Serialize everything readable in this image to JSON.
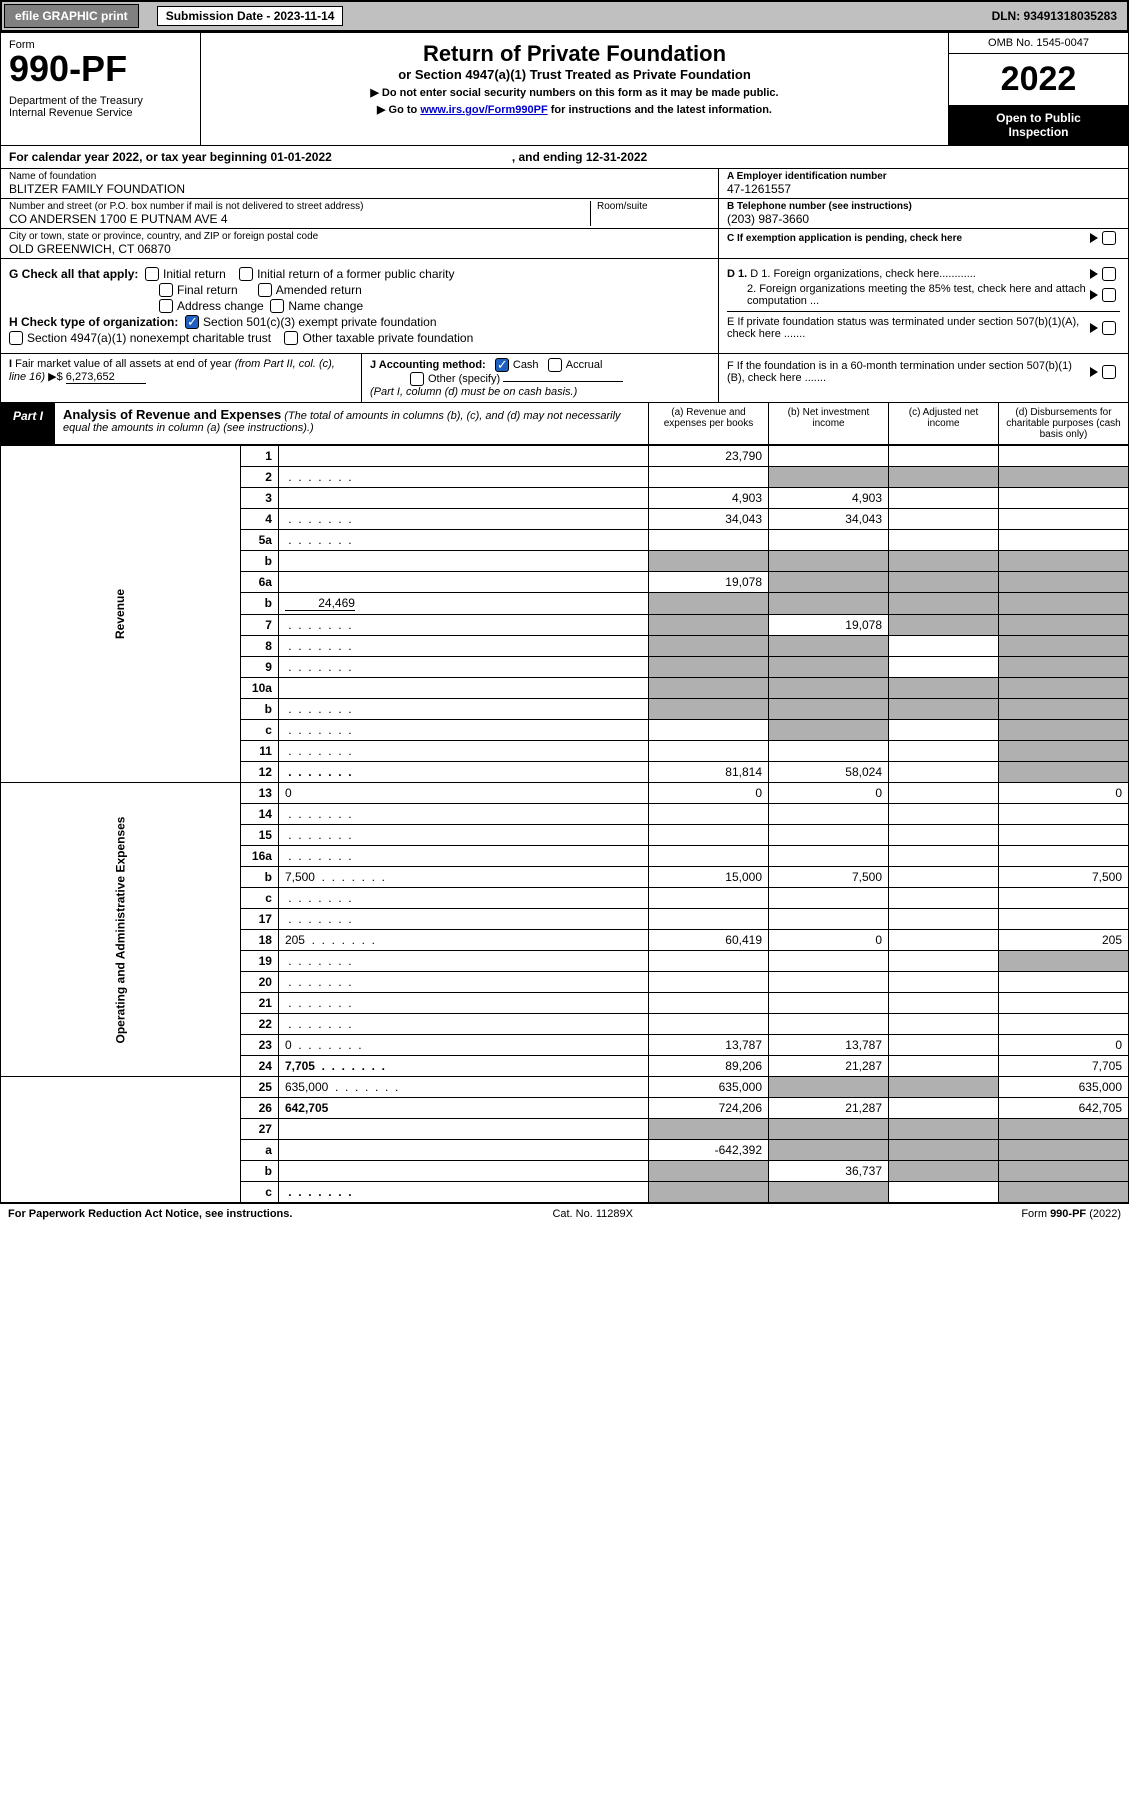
{
  "top": {
    "efile": "efile GRAPHIC print",
    "sub_label": "Submission Date - 2023-11-14",
    "dln": "DLN: 93491318035283"
  },
  "header": {
    "form": "Form",
    "form_no": "990-PF",
    "dept": "Department of the Treasury\nInternal Revenue Service",
    "title": "Return of Private Foundation",
    "subtitle": "or Section 4947(a)(1) Trust Treated as Private Foundation",
    "note1": "▶ Do not enter social security numbers on this form as it may be made public.",
    "note2": "▶ Go to www.irs.gov/Form990PF for instructions and the latest information.",
    "link": "www.irs.gov/Form990PF",
    "omb": "OMB No. 1545-0047",
    "year": "2022",
    "open": "Open to Public\nInspection"
  },
  "calendar": {
    "begin": "For calendar year 2022, or tax year beginning 01-01-2022",
    "end": ", and ending 12-31-2022"
  },
  "info": {
    "name_lbl": "Name of foundation",
    "name": "BLITZER FAMILY FOUNDATION",
    "addr_lbl": "Number and street (or P.O. box number if mail is not delivered to street address)",
    "addr": "CO ANDERSEN 1700 E PUTNAM AVE 4",
    "room_lbl": "Room/suite",
    "city_lbl": "City or town, state or province, country, and ZIP or foreign postal code",
    "city": "OLD GREENWICH, CT  06870",
    "ein_lbl": "A Employer identification number",
    "ein": "47-1261557",
    "phone_lbl": "B Telephone number (see instructions)",
    "phone": "(203) 987-3660",
    "c_lbl": "C If exemption application is pending, check here"
  },
  "checks": {
    "g_label": "G Check all that apply:",
    "g_initial": "Initial return",
    "g_initial_former": "Initial return of a former public charity",
    "g_final": "Final return",
    "g_amended": "Amended return",
    "g_addr": "Address change",
    "g_name": "Name change",
    "h_label": "H Check type of organization:",
    "h_501c3": "Section 501(c)(3) exempt private foundation",
    "h_4947": "Section 4947(a)(1) nonexempt charitable trust",
    "h_other": "Other taxable private foundation",
    "d1": "D 1. Foreign organizations, check here............",
    "d2": "2. Foreign organizations meeting the 85% test, check here and attach computation ...",
    "e": "E  If private foundation status was terminated under section 507(b)(1)(A), check here .......",
    "i_label": "I Fair market value of all assets at end of year (from Part II, col. (c), line 16) ▶$",
    "i_val": "6,273,652",
    "j_label": "J Accounting method:",
    "j_cash": "Cash",
    "j_accrual": "Accrual",
    "j_other": "Other (specify)",
    "j_note": "(Part I, column (d) must be on cash basis.)",
    "f": "F  If the foundation is in a 60-month termination under section 507(b)(1)(B), check here ......."
  },
  "part1": {
    "label": "Part I",
    "title": "Analysis of Revenue and Expenses",
    "note": "(The total of amounts in columns (b), (c), and (d) may not necessarily equal the amounts in column (a) (see instructions).)",
    "col_a": "(a)   Revenue and expenses per books",
    "col_b": "(b)   Net investment income",
    "col_c": "(c)   Adjusted net income",
    "col_d": "(d)   Disbursements for charitable purposes (cash basis only)"
  },
  "sides": {
    "revenue": "Revenue",
    "expenses": "Operating and Administrative Expenses"
  },
  "rows": [
    {
      "n": "1",
      "d": "",
      "a": "23,790",
      "b": "",
      "c": ""
    },
    {
      "n": "2",
      "d": "",
      "dots": true,
      "a": "",
      "b": "",
      "c": "",
      "shade_bcd": true
    },
    {
      "n": "3",
      "d": "",
      "a": "4,903",
      "b": "4,903",
      "c": ""
    },
    {
      "n": "4",
      "d": "",
      "dots": true,
      "a": "34,043",
      "b": "34,043",
      "c": ""
    },
    {
      "n": "5a",
      "d": "",
      "dots": true,
      "a": "",
      "b": "",
      "c": ""
    },
    {
      "n": "b",
      "d": "",
      "inset": true,
      "a": "",
      "b": "",
      "c": "",
      "shade_all": true
    },
    {
      "n": "6a",
      "d": "",
      "a": "19,078",
      "b": "",
      "c": "",
      "shade_bcd": true
    },
    {
      "n": "b",
      "d": "",
      "inset_val": "24,469",
      "a": "",
      "b": "",
      "c": "",
      "shade_all": true
    },
    {
      "n": "7",
      "d": "",
      "dots": true,
      "a": "",
      "b": "19,078",
      "c": "",
      "shade_a": true,
      "shade_cd": true
    },
    {
      "n": "8",
      "d": "",
      "dots": true,
      "a": "",
      "b": "",
      "c": "",
      "shade_ab": true,
      "shade_d": true
    },
    {
      "n": "9",
      "d": "",
      "dots": true,
      "a": "",
      "b": "",
      "c": "",
      "shade_ab": true,
      "shade_d": true
    },
    {
      "n": "10a",
      "d": "",
      "inset": true,
      "a": "",
      "b": "",
      "c": "",
      "shade_all": true
    },
    {
      "n": "b",
      "d": "",
      "inset": true,
      "dots": true,
      "a": "",
      "b": "",
      "c": "",
      "shade_all": true
    },
    {
      "n": "c",
      "d": "",
      "dots": true,
      "a": "",
      "b": "",
      "c": "",
      "shade_bd": true
    },
    {
      "n": "11",
      "d": "",
      "dots": true,
      "a": "",
      "b": "",
      "c": "",
      "shade_d": true
    },
    {
      "n": "12",
      "d": "",
      "dots": true,
      "bold": true,
      "a": "81,814",
      "b": "58,024",
      "c": "",
      "shade_d": true
    },
    {
      "n": "13",
      "d": "0",
      "a": "0",
      "b": "0",
      "c": ""
    },
    {
      "n": "14",
      "d": "",
      "dots": true,
      "a": "",
      "b": "",
      "c": ""
    },
    {
      "n": "15",
      "d": "",
      "dots": true,
      "a": "",
      "b": "",
      "c": ""
    },
    {
      "n": "16a",
      "d": "",
      "dots": true,
      "a": "",
      "b": "",
      "c": ""
    },
    {
      "n": "b",
      "d": "7,500",
      "dots": true,
      "a": "15,000",
      "b": "7,500",
      "c": ""
    },
    {
      "n": "c",
      "d": "",
      "dots": true,
      "a": "",
      "b": "",
      "c": ""
    },
    {
      "n": "17",
      "d": "",
      "dots": true,
      "a": "",
      "b": "",
      "c": ""
    },
    {
      "n": "18",
      "d": "205",
      "dots": true,
      "a": "60,419",
      "b": "0",
      "c": ""
    },
    {
      "n": "19",
      "d": "",
      "dots": true,
      "a": "",
      "b": "",
      "c": "",
      "shade_d": true
    },
    {
      "n": "20",
      "d": "",
      "dots": true,
      "a": "",
      "b": "",
      "c": ""
    },
    {
      "n": "21",
      "d": "",
      "dots": true,
      "a": "",
      "b": "",
      "c": ""
    },
    {
      "n": "22",
      "d": "",
      "dots": true,
      "a": "",
      "b": "",
      "c": ""
    },
    {
      "n": "23",
      "d": "0",
      "dots": true,
      "a": "13,787",
      "b": "13,787",
      "c": ""
    },
    {
      "n": "24",
      "d": "7,705",
      "dots": true,
      "bold": true,
      "a": "89,206",
      "b": "21,287",
      "c": ""
    },
    {
      "n": "25",
      "d": "635,000",
      "dots": true,
      "a": "635,000",
      "b": "",
      "c": "",
      "shade_bc": true
    },
    {
      "n": "26",
      "d": "642,705",
      "bold": true,
      "a": "724,206",
      "b": "21,287",
      "c": ""
    },
    {
      "n": "27",
      "d": "",
      "a": "",
      "b": "",
      "c": "",
      "shade_all": true
    },
    {
      "n": "a",
      "d": "",
      "bold": true,
      "a": "-642,392",
      "b": "",
      "c": "",
      "shade_bcd": true
    },
    {
      "n": "b",
      "d": "",
      "bold": true,
      "a": "",
      "b": "36,737",
      "c": "",
      "shade_a": true,
      "shade_cd": true
    },
    {
      "n": "c",
      "d": "",
      "bold": true,
      "dots": true,
      "a": "",
      "b": "",
      "c": "",
      "shade_ab": true,
      "shade_d": true
    }
  ],
  "footer": {
    "left": "For Paperwork Reduction Act Notice, see instructions.",
    "mid": "Cat. No. 11289X",
    "right": "Form 990-PF (2022)"
  }
}
